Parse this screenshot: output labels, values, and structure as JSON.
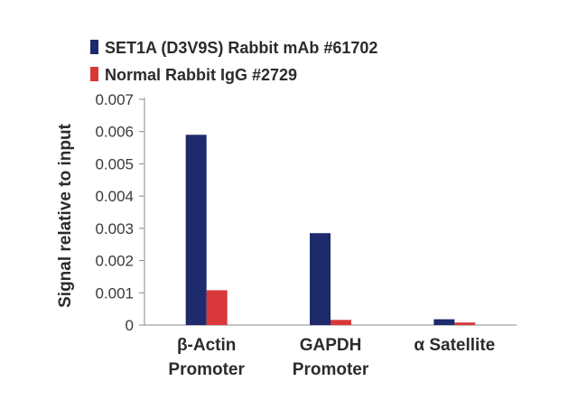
{
  "chart_data": {
    "type": "bar",
    "title": "",
    "xlabel": "",
    "ylabel": "Signal relative to input",
    "ylim": [
      0,
      0.007
    ],
    "yticks": [
      "0",
      "0.001",
      "0.002",
      "0.003",
      "0.004",
      "0.005",
      "0.006",
      "0.007"
    ],
    "categories": [
      [
        "β-Actin",
        "Promoter"
      ],
      [
        "GAPDH",
        "Promoter"
      ],
      [
        "α Satellite"
      ]
    ],
    "series": [
      {
        "name": "SET1A (D3V9S) Rabbit mAb #61702",
        "color": "#1d2a6b",
        "values": [
          0.0059,
          0.00285,
          0.00018
        ]
      },
      {
        "name": "Normal Rabbit IgG #2729",
        "color": "#d9383a",
        "values": [
          0.00108,
          0.00016,
          8e-05
        ]
      }
    ],
    "legend_position": "top",
    "grid": false
  }
}
